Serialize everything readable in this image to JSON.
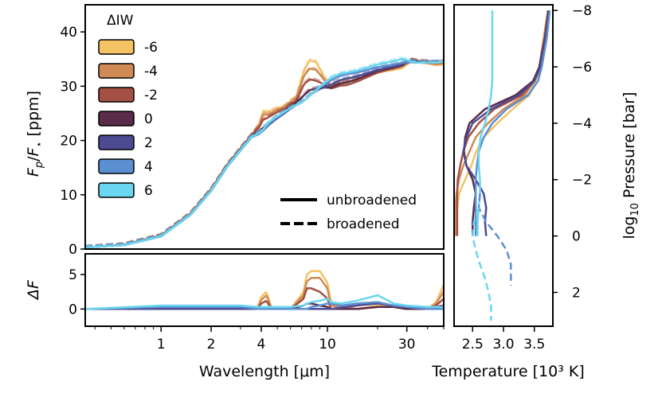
{
  "chart_data": [
    {
      "id": "emission",
      "type": "line",
      "ylabel_main": "F",
      "ylabel_sub_p": "p",
      "ylabel_slash": "/",
      "ylabel_sub_star": "⋆",
      "ylabel_unit": " [ppm]",
      "xscale": "log",
      "xlim": [
        0.35,
        50
      ],
      "ylim": [
        0,
        45
      ],
      "yticks": [
        0,
        10,
        20,
        30,
        40
      ],
      "legend_title": "ΔIW",
      "series_names": [
        "-6",
        "-4",
        "-2",
        "0",
        "2",
        "4",
        "6"
      ],
      "linestyle_legend": {
        "solid": "unbroadened",
        "dashed": "broadened"
      },
      "anchors_x": [
        0.35,
        0.6,
        1.0,
        1.5,
        2,
        2.5,
        3,
        3.5,
        4,
        4.5,
        5,
        6,
        7,
        8,
        9,
        10,
        12,
        15,
        20,
        25,
        30,
        35,
        40,
        50
      ],
      "base_y": [
        0.3,
        0.8,
        2.5,
        6.5,
        11,
        15.5,
        18.5,
        21,
        22.5,
        24,
        25,
        26.5,
        27.5,
        29,
        30,
        30.5,
        31.5,
        32,
        33,
        33.5,
        34,
        34,
        34.2,
        34.5
      ],
      "bump_x": [
        0.35,
        3.5,
        3.9,
        4.1,
        4.4,
        5.5,
        6.5,
        7.2,
        7.8,
        8.5,
        9.5,
        10.5,
        13,
        20,
        28,
        32,
        36,
        45,
        50
      ]
    },
    {
      "id": "difference",
      "type": "line",
      "ylabel": "ΔF",
      "xlabel": "Wavelength [μm]",
      "xscale": "log",
      "xlim": [
        0.35,
        50
      ],
      "ylim": [
        -2.5,
        8
      ],
      "yticks": [
        0,
        5
      ],
      "xticks": [
        1,
        2,
        4,
        10,
        30
      ],
      "xtick_labels": [
        "1",
        "2",
        "4",
        "10",
        "30"
      ],
      "diff_x": [
        0.35,
        1.0,
        1.5,
        2.0,
        3.0,
        3.8,
        4.0,
        4.3,
        4.6,
        6.0,
        7.2,
        7.5,
        8.0,
        9.0,
        10.0,
        10.5,
        12,
        15,
        20,
        25,
        30,
        40,
        45,
        50
      ]
    },
    {
      "id": "tp-profile",
      "type": "line",
      "xlabel": "Temperature [10³ K]",
      "ylabel_pre": "log",
      "ylabel_sub": "10",
      "ylabel_post": " Pressure [bar]",
      "xlim": [
        2.2,
        3.8
      ],
      "ylim": [
        3.2,
        -8.2
      ],
      "xticks": [
        2.5,
        3.0,
        3.5
      ],
      "xtick_labels": [
        "2.5",
        "3.0",
        "3.5"
      ],
      "yticks": [
        -8,
        -6,
        -4,
        -2,
        0,
        2
      ],
      "ytick_labels": [
        "−8",
        "−6",
        "−4",
        "−2",
        "0",
        "2"
      ],
      "p_grid": [
        -8,
        -7,
        -6,
        -5.5,
        -5,
        -4.5,
        -4,
        -3.5,
        -3,
        -2.5,
        -2,
        -1.5,
        -1,
        -0.5,
        0
      ]
    }
  ],
  "series_colors": [
    "#f5c264",
    "#cf8a55",
    "#a44f43",
    "#5a2b4a",
    "#4c4b91",
    "#5a8fd1",
    "#6ad6ef"
  ],
  "emission_bump": [
    [
      0,
      0,
      0.8,
      2.5,
      1.5,
      0.5,
      1.0,
      5.0,
      6.0,
      5.0,
      1.5,
      -0.5,
      -1.0,
      -0.5,
      -0.5,
      0.5,
      0.5,
      -0.5,
      -0.5
    ],
    [
      0,
      0,
      0.6,
      2.0,
      1.0,
      0.3,
      0.8,
      4.0,
      4.5,
      3.5,
      1.0,
      -0.8,
      -1.0,
      -0.3,
      -0.3,
      0.5,
      0.3,
      -0.3,
      -0.3
    ],
    [
      0,
      0,
      0.3,
      1.0,
      0.5,
      0.0,
      0.3,
      2.5,
      2.5,
      1.5,
      0.0,
      -1.2,
      -1.5,
      -0.5,
      0.0,
      0.8,
      0.5,
      0.0,
      0.0
    ],
    [
      0,
      -0.2,
      -0.5,
      -0.5,
      -0.8,
      -0.5,
      0.0,
      0.5,
      0.5,
      0.0,
      -0.5,
      -1.0,
      -1.0,
      -0.2,
      0.0,
      0.8,
      0.5,
      0.0,
      0.0
    ],
    [
      0,
      -0.3,
      -0.8,
      -1.0,
      -1.0,
      -0.8,
      -0.5,
      -0.5,
      -0.5,
      -0.5,
      -0.5,
      -0.5,
      -0.3,
      0.0,
      0.2,
      0.5,
      0.3,
      0.0,
      0.0
    ],
    [
      0,
      -0.4,
      -1.0,
      -1.0,
      -0.8,
      -0.6,
      -0.5,
      -0.5,
      -0.5,
      -0.3,
      0.0,
      0.3,
      0.5,
      0.5,
      0.5,
      0.4,
      0.3,
      0.0,
      0.0
    ],
    [
      0,
      -0.3,
      -0.8,
      -0.8,
      -0.5,
      -0.5,
      -0.5,
      -0.5,
      -0.5,
      -0.5,
      0.2,
      0.8,
      0.8,
      1.0,
      1.2,
      0.5,
      0.3,
      0.0,
      0.0
    ]
  ],
  "diff_values": [
    [
      0,
      0,
      0,
      0,
      0,
      0.2,
      1.8,
      2.5,
      0.2,
      0,
      2.5,
      5.0,
      5.5,
      5.5,
      3.8,
      1.0,
      0.5,
      0,
      0.5,
      0.5,
      0,
      0,
      1.0,
      3.5
    ],
    [
      0,
      0,
      0,
      0,
      0,
      0.2,
      1.3,
      2.0,
      0.2,
      0,
      2.0,
      4.0,
      4.5,
      4.5,
      3.0,
      0.5,
      0.3,
      0,
      0.3,
      0.3,
      0,
      0,
      0.8,
      2.5
    ],
    [
      0,
      0,
      0,
      0,
      0,
      0,
      0.8,
      1.2,
      0,
      0,
      1.5,
      3.0,
      3.0,
      2.5,
      1.5,
      0,
      0,
      0,
      0.3,
      0.3,
      0,
      0,
      0.5,
      1.5
    ],
    [
      0,
      0,
      0,
      0,
      0,
      0,
      0.3,
      0.3,
      0,
      0,
      0.5,
      0.8,
      0.8,
      0.5,
      0.3,
      0,
      0,
      0,
      0.3,
      0.3,
      0,
      0,
      0.3,
      0.5
    ],
    [
      0,
      0,
      0,
      0,
      0,
      0,
      0,
      0,
      0,
      0,
      0,
      0,
      0,
      0,
      0,
      0,
      0.2,
      0.5,
      0.8,
      0.5,
      0.3,
      0,
      0,
      0
    ],
    [
      0,
      0.3,
      0.3,
      0.3,
      0.3,
      0,
      0,
      0,
      0,
      0,
      0,
      0,
      0.3,
      0.5,
      0.8,
      0.8,
      0.5,
      0.8,
      1.0,
      0.5,
      0.3,
      0,
      0,
      0
    ],
    [
      0,
      0.5,
      0.5,
      0.5,
      0.5,
      0.3,
      0.3,
      0.3,
      0.3,
      0.3,
      0.5,
      0.8,
      1.0,
      1.2,
      1.5,
      1.0,
      0.8,
      1.2,
      2.0,
      0.8,
      0.5,
      0.3,
      0.3,
      0.3
    ]
  ],
  "tp_temps": [
    [
      3.72,
      3.67,
      3.6,
      3.52,
      3.42,
      3.15,
      2.9,
      2.68,
      2.56,
      2.48,
      2.38,
      2.28,
      2.25,
      2.22,
      2.2
    ],
    [
      3.72,
      3.65,
      3.58,
      3.5,
      3.35,
      3.0,
      2.75,
      2.55,
      2.45,
      2.35,
      2.28,
      2.24,
      2.22,
      2.22,
      2.22
    ],
    [
      3.73,
      3.68,
      3.6,
      3.5,
      3.3,
      2.85,
      2.6,
      2.43,
      2.35,
      2.3,
      2.26,
      2.25,
      2.25,
      2.25,
      2.25
    ],
    [
      3.73,
      3.67,
      3.58,
      3.48,
      3.2,
      2.7,
      2.45,
      2.38,
      2.36,
      2.4,
      2.5,
      2.55,
      2.52,
      2.5,
      2.5
    ],
    [
      3.74,
      3.68,
      3.6,
      3.5,
      3.25,
      2.8,
      2.5,
      2.4,
      2.35,
      2.4,
      2.55,
      2.68,
      2.72,
      2.7,
      2.72
    ],
    [
      3.75,
      3.7,
      3.62,
      3.56,
      3.4,
      3.05,
      2.82,
      2.68,
      2.6,
      2.57,
      2.55,
      2.55,
      2.55,
      2.55,
      2.55
    ],
    [
      2.82,
      2.82,
      2.82,
      2.82,
      2.8,
      2.76,
      2.7,
      2.63,
      2.6,
      2.6,
      2.62,
      2.62,
      2.6,
      2.58,
      2.58
    ]
  ],
  "tp_broadened": [
    {
      "series": 5,
      "p": [
        -1.5,
        -1.0,
        -0.5,
        0.0,
        0.5,
        1.0,
        1.5,
        1.75
      ],
      "t": [
        2.62,
        2.6,
        2.72,
        2.9,
        3.05,
        3.12,
        3.12,
        3.12
      ]
    },
    {
      "series": 6,
      "p": [
        -1.0,
        -0.5,
        0.0,
        0.5,
        1.0,
        1.5,
        2.0,
        2.5,
        3.0
      ],
      "t": [
        2.6,
        2.52,
        2.5,
        2.55,
        2.62,
        2.7,
        2.76,
        2.8,
        2.8
      ]
    }
  ]
}
